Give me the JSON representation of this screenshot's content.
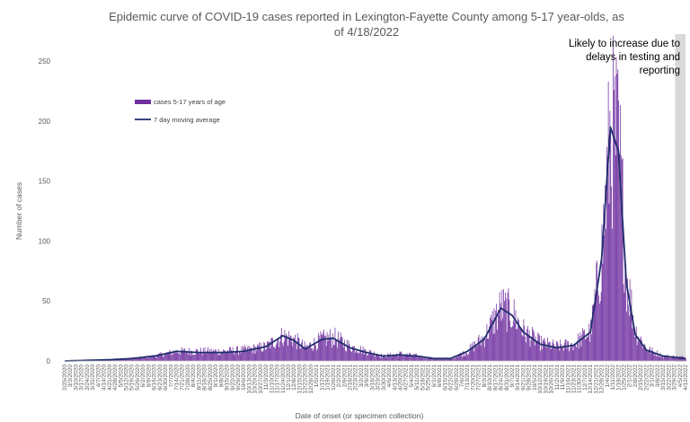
{
  "chart_data": {
    "type": "bar",
    "title_line1": "Epidemic curve of COVID-19 cases reported in Lexington-Fayette County among 5-17 year-olds, as",
    "title_line2": "of 4/18/2022",
    "xlabel": "Date of onset (or specimen collection)",
    "ylabel": "Number of cases",
    "ylim": [
      0,
      250
    ],
    "yticks": [
      0,
      50,
      100,
      150,
      200,
      250
    ],
    "x_range": [
      "2/25/2020",
      "4/12/2022"
    ],
    "xticks_first": "2/25/2020",
    "xticks_last": "4/12/2022",
    "annotation": [
      "Likely to increase due to",
      "delays in testing and",
      "reporting"
    ],
    "shaded_region_start": "3/30/2022",
    "colors": {
      "bars": "#7030A0",
      "line": "#1F2D6B",
      "shade": "#D9D9D9"
    },
    "legend": {
      "placement": "top-left",
      "bar_label": "cases 5-17 years of age",
      "line_label": "7 day moving average"
    },
    "series": [
      {
        "name": "cases 5-17 years of age",
        "kind": "bar",
        "weekly_keypoints": [
          [
            "2020-02-25",
            0
          ],
          [
            "2020-03-24",
            1
          ],
          [
            "2020-04-21",
            1
          ],
          [
            "2020-05-19",
            2
          ],
          [
            "2020-06-16",
            4
          ],
          [
            "2020-07-14",
            8
          ],
          [
            "2020-08-11",
            8
          ],
          [
            "2020-09-08",
            8
          ],
          [
            "2020-10-06",
            9
          ],
          [
            "2020-11-03",
            12
          ],
          [
            "2020-11-24",
            21
          ],
          [
            "2020-12-08",
            18
          ],
          [
            "2020-12-22",
            11
          ],
          [
            "2021-01-12",
            18
          ],
          [
            "2021-01-26",
            20
          ],
          [
            "2021-02-16",
            12
          ],
          [
            "2021-03-09",
            8
          ],
          [
            "2021-03-30",
            4
          ],
          [
            "2021-04-20",
            6
          ],
          [
            "2021-05-11",
            4
          ],
          [
            "2021-06-01",
            2
          ],
          [
            "2021-06-22",
            2
          ],
          [
            "2021-07-13",
            8
          ],
          [
            "2021-08-03",
            20
          ],
          [
            "2021-08-24",
            45
          ],
          [
            "2021-09-07",
            40
          ],
          [
            "2021-09-21",
            25
          ],
          [
            "2021-10-12",
            15
          ],
          [
            "2021-11-02",
            12
          ],
          [
            "2021-11-23",
            14
          ],
          [
            "2021-12-14",
            25
          ],
          [
            "2021-12-28",
            90
          ],
          [
            "2022-01-08",
            195
          ],
          [
            "2022-01-18",
            180
          ],
          [
            "2022-01-28",
            70
          ],
          [
            "2022-02-08",
            25
          ],
          [
            "2022-02-22",
            10
          ],
          [
            "2022-03-15",
            4
          ],
          [
            "2022-04-12",
            3
          ]
        ]
      },
      {
        "name": "7 day moving average",
        "kind": "line",
        "weekly_keypoints": [
          [
            "2020-02-25",
            0
          ],
          [
            "2020-03-24",
            0.5
          ],
          [
            "2020-04-21",
            1
          ],
          [
            "2020-05-19",
            2
          ],
          [
            "2020-06-16",
            4
          ],
          [
            "2020-07-14",
            8
          ],
          [
            "2020-08-11",
            7
          ],
          [
            "2020-09-08",
            7
          ],
          [
            "2020-10-06",
            8
          ],
          [
            "2020-11-03",
            12
          ],
          [
            "2020-11-24",
            21
          ],
          [
            "2020-12-08",
            17
          ],
          [
            "2020-12-22",
            10
          ],
          [
            "2021-01-12",
            18
          ],
          [
            "2021-01-26",
            19
          ],
          [
            "2021-02-16",
            11
          ],
          [
            "2021-03-09",
            7
          ],
          [
            "2021-03-30",
            4
          ],
          [
            "2021-04-20",
            5
          ],
          [
            "2021-05-11",
            4
          ],
          [
            "2021-06-01",
            2
          ],
          [
            "2021-06-22",
            2
          ],
          [
            "2021-07-13",
            8
          ],
          [
            "2021-08-03",
            18
          ],
          [
            "2021-08-24",
            44
          ],
          [
            "2021-09-07",
            38
          ],
          [
            "2021-09-21",
            24
          ],
          [
            "2021-10-12",
            14
          ],
          [
            "2021-11-02",
            11
          ],
          [
            "2021-11-23",
            13
          ],
          [
            "2021-12-14",
            24
          ],
          [
            "2021-12-28",
            85
          ],
          [
            "2022-01-08",
            195
          ],
          [
            "2022-01-18",
            175
          ],
          [
            "2022-01-28",
            65
          ],
          [
            "2022-02-08",
            22
          ],
          [
            "2022-02-22",
            9
          ],
          [
            "2022-03-15",
            4
          ],
          [
            "2022-04-12",
            2
          ]
        ]
      }
    ]
  }
}
